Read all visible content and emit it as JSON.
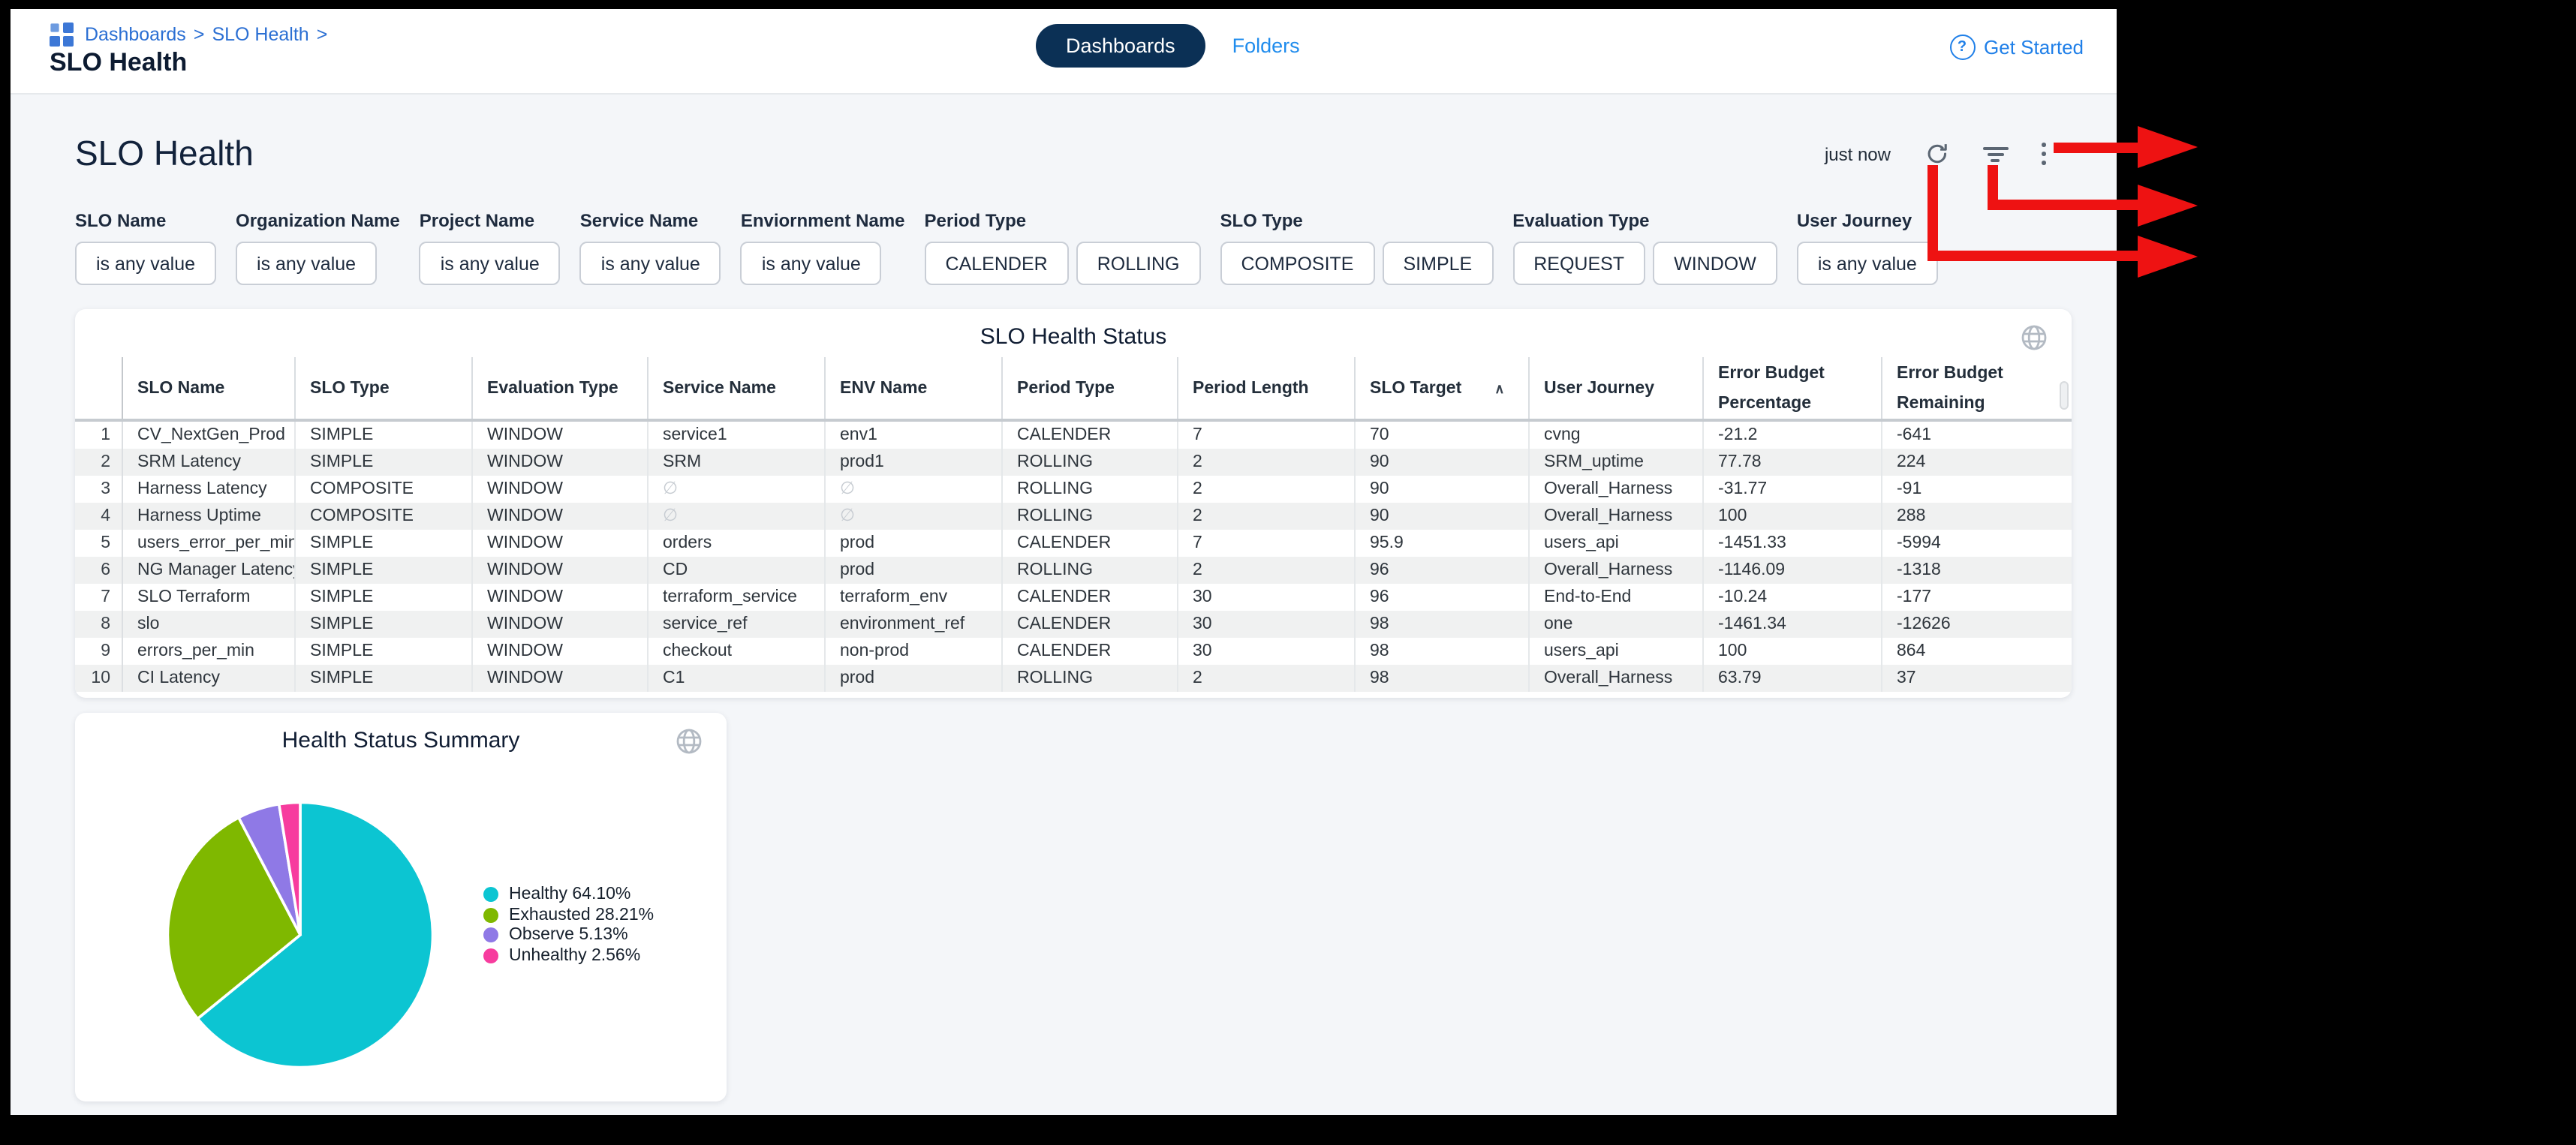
{
  "colors": {
    "link_blue": "#1f7fe8",
    "breadcrumb_blue": "#2b6fd3",
    "pill_navy": "#0b3055",
    "title_navy": "#0d1b31",
    "annotation_red": "#ee1212"
  },
  "header": {
    "breadcrumb": {
      "items": [
        "Dashboards",
        "SLO Health"
      ],
      "separator": ">"
    },
    "title": "SLO Health",
    "tabs": [
      {
        "label": "Dashboards",
        "active": true
      },
      {
        "label": "Folders",
        "active": false
      }
    ],
    "get_started_label": "Get Started",
    "help_glyph": "?"
  },
  "toolbar": {
    "page_title": "SLO Health",
    "refreshed_label": "just now"
  },
  "filters": [
    {
      "label": "SLO Name",
      "buttons": [
        "is any value"
      ]
    },
    {
      "label": "Organization Name",
      "buttons": [
        "is any value"
      ]
    },
    {
      "label": "Project Name",
      "buttons": [
        "is any value"
      ]
    },
    {
      "label": "Service Name",
      "buttons": [
        "is any value"
      ]
    },
    {
      "label": "Enviornment Name",
      "buttons": [
        "is any value"
      ]
    },
    {
      "label": "Period Type",
      "buttons": [
        "CALENDER",
        "ROLLING"
      ]
    },
    {
      "label": "SLO Type",
      "buttons": [
        "COMPOSITE",
        "SIMPLE"
      ]
    },
    {
      "label": "Evaluation Type",
      "buttons": [
        "REQUEST",
        "WINDOW"
      ]
    },
    {
      "label": "User Journey",
      "buttons": [
        "is any value"
      ]
    }
  ],
  "table": {
    "title": "SLO Health Status",
    "sort_column": "SLO Target",
    "sort_direction": "asc",
    "columns": [
      "SLO Name",
      "SLO Type",
      "Evaluation Type",
      "Service Name",
      "ENV Name",
      "Period Type",
      "Period Length",
      "SLO Target",
      "User Journey",
      "Error Budget\nPercentage",
      "Error Budget\nRemaining"
    ],
    "rows": [
      [
        "CV_NextGen_Prod",
        "SIMPLE",
        "WINDOW",
        "service1",
        "env1",
        "CALENDER",
        "7",
        "70",
        "cvng",
        "-21.2",
        "-641"
      ],
      [
        "SRM Latency",
        "SIMPLE",
        "WINDOW",
        "SRM",
        "prod1",
        "ROLLING",
        "2",
        "90",
        "SRM_uptime",
        "77.78",
        "224"
      ],
      [
        "Harness Latency",
        "COMPOSITE",
        "WINDOW",
        "∅",
        "∅",
        "ROLLING",
        "2",
        "90",
        "Overall_Harness",
        "-31.77",
        "-91"
      ],
      [
        "Harness Uptime",
        "COMPOSITE",
        "WINDOW",
        "∅",
        "∅",
        "ROLLING",
        "2",
        "90",
        "Overall_Harness",
        "100",
        "288"
      ],
      [
        "users_error_per_min",
        "SIMPLE",
        "WINDOW",
        "orders",
        "prod",
        "CALENDER",
        "7",
        "95.9",
        "users_api",
        "-1451.33",
        "-5994"
      ],
      [
        "NG Manager Latency",
        "SIMPLE",
        "WINDOW",
        "CD",
        "prod",
        "ROLLING",
        "2",
        "96",
        "Overall_Harness",
        "-1146.09",
        "-1318"
      ],
      [
        "SLO Terraform",
        "SIMPLE",
        "WINDOW",
        "terraform_service",
        "terraform_env",
        "CALENDER",
        "30",
        "96",
        "End-to-End",
        "-10.24",
        "-177"
      ],
      [
        "slo",
        "SIMPLE",
        "WINDOW",
        "service_ref",
        "environment_ref",
        "CALENDER",
        "30",
        "98",
        "one",
        "-1461.34",
        "-12626"
      ],
      [
        "errors_per_min",
        "SIMPLE",
        "WINDOW",
        "checkout",
        "non-prod",
        "CALENDER",
        "30",
        "98",
        "users_api",
        "100",
        "864"
      ],
      [
        "CI Latency",
        "SIMPLE",
        "WINDOW",
        "C1",
        "prod",
        "ROLLING",
        "2",
        "98",
        "Overall_Harness",
        "63.79",
        "37"
      ]
    ]
  },
  "chart_data": {
    "type": "pie",
    "title": "Health Status Summary",
    "labels": [
      "Healthy",
      "Exhausted",
      "Observe",
      "Unhealthy"
    ],
    "values": [
      64.1,
      28.21,
      5.13,
      2.56
    ],
    "colors": [
      "#0cc5d2",
      "#7fb800",
      "#8f79e6",
      "#f73c9e"
    ],
    "legend_position": "right",
    "start_angle_deg": -90,
    "direction": "clockwise"
  }
}
